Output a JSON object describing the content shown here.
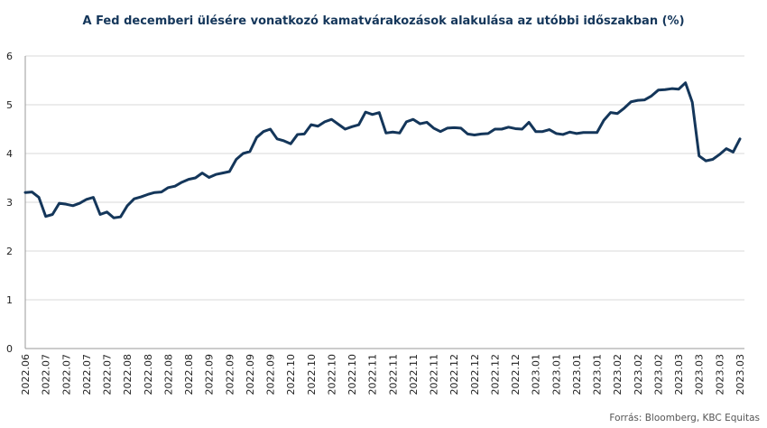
{
  "chart_data": {
    "type": "line",
    "title": "A Fed decemberi ülésére  vonatkozó kamatvárakozások alakulása az utóbbi időszakban (%)",
    "source": "Forrás: Bloomberg, KBC Equitas",
    "categories": [
      "2022.06",
      null,
      null,
      "2022.07",
      null,
      null,
      "2022.07",
      null,
      null,
      "2022.07",
      null,
      null,
      "2022.07",
      null,
      null,
      "2022.08",
      null,
      null,
      "2022.08",
      null,
      null,
      "2022.08",
      null,
      null,
      "2022.08",
      null,
      null,
      "2022.09",
      null,
      null,
      "2022.09",
      null,
      null,
      "2022.09",
      null,
      null,
      "2022.09",
      null,
      null,
      "2022.10",
      null,
      null,
      "2022.10",
      null,
      null,
      "2022.10",
      null,
      null,
      "2022.10",
      null,
      null,
      "2022.11",
      null,
      null,
      "2022.11",
      null,
      null,
      "2022.11",
      null,
      null,
      "2022.11",
      null,
      null,
      "2022.12",
      null,
      null,
      "2022.12",
      null,
      null,
      "2022.12",
      null,
      null,
      "2022.12",
      null,
      null,
      "2023.01",
      null,
      null,
      "2023.01",
      null,
      null,
      "2023.01",
      null,
      null,
      "2023.01",
      null,
      null,
      "2023.02",
      null,
      null,
      "2023.02",
      null,
      null,
      "2023.02",
      null,
      null,
      "2023.03",
      null,
      null,
      "2023.03",
      null,
      null,
      "2023.03",
      null,
      null,
      "2023.03"
    ],
    "series": [
      {
        "color": "#14365a",
        "values": [
          3.2,
          3.21,
          3.1,
          2.71,
          2.75,
          2.98,
          2.96,
          2.93,
          2.98,
          3.06,
          3.1,
          2.75,
          2.8,
          2.68,
          2.7,
          2.93,
          3.07,
          3.11,
          3.16,
          3.2,
          3.21,
          3.3,
          3.33,
          3.41,
          3.47,
          3.5,
          3.6,
          3.51,
          3.57,
          3.6,
          3.63,
          3.88,
          4.0,
          4.04,
          4.33,
          4.45,
          4.5,
          4.3,
          4.26,
          4.2,
          4.39,
          4.4,
          4.59,
          4.56,
          4.65,
          4.7,
          4.6,
          4.5,
          4.55,
          4.59,
          4.85,
          4.8,
          4.84,
          4.42,
          4.44,
          4.42,
          4.65,
          4.7,
          4.61,
          4.64,
          4.52,
          4.45,
          4.52,
          4.53,
          4.52,
          4.4,
          4.38,
          4.4,
          4.41,
          4.5,
          4.5,
          4.54,
          4.51,
          4.5,
          4.64,
          4.45,
          4.45,
          4.49,
          4.41,
          4.39,
          4.44,
          4.41,
          4.43,
          4.43,
          4.43,
          4.68,
          4.84,
          4.82,
          4.93,
          5.06,
          5.09,
          5.1,
          5.18,
          5.3,
          5.31,
          5.33,
          5.32,
          5.45,
          5.05,
          3.95,
          3.85,
          3.88,
          3.98,
          4.1,
          4.03,
          4.3
        ]
      }
    ],
    "ylim": [
      0,
      6
    ],
    "yticks": [
      0,
      1,
      2,
      3,
      4,
      5,
      6
    ],
    "grid": true
  }
}
